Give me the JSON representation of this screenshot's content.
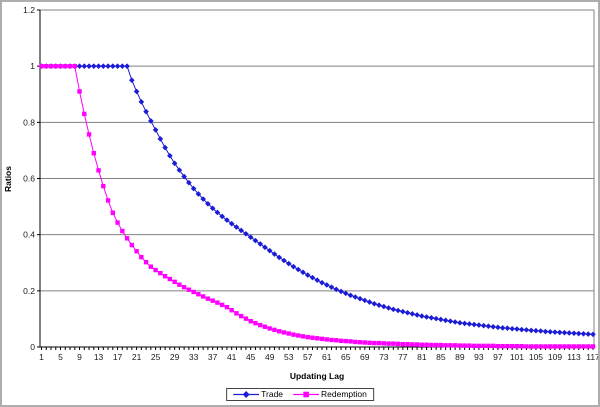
{
  "frame": {
    "background": "#ffffff",
    "border_color": "#adadad",
    "gridline_color": "#808080",
    "axis_color": "#000000"
  },
  "chart_data": {
    "type": "line",
    "title": "",
    "xlabel": "Updating Lag",
    "ylabel": "Ratios",
    "x_range": [
      1,
      117
    ],
    "x_step": 1,
    "ylim": [
      0,
      1.2
    ],
    "y_ticks": [
      0,
      0.2,
      0.4,
      0.6,
      0.8,
      1,
      1.2
    ],
    "y_tick_labels": [
      "0",
      "0.2",
      "0.4",
      "0.6",
      "0.8",
      "1",
      "1.2"
    ],
    "x_tick_label_step": 4,
    "x_tick_labels": [
      "1",
      "5",
      "9",
      "13",
      "17",
      "21",
      "25",
      "29",
      "33",
      "37",
      "41",
      "45",
      "49",
      "53",
      "57",
      "61",
      "65",
      "69",
      "73",
      "77",
      "81",
      "85",
      "89",
      "93",
      "97",
      "101",
      "105",
      "109",
      "113",
      "117"
    ],
    "grid": "horizontal",
    "legend_position": "bottom",
    "series": [
      {
        "name": "Trade",
        "color": "#1c1cd6",
        "marker": "diamond",
        "values": [
          1,
          1,
          1,
          1,
          1,
          1,
          1,
          1,
          1,
          1,
          1,
          1,
          1,
          1,
          1,
          1,
          1,
          1,
          1,
          0.95,
          0.91,
          0.873,
          0.838,
          0.805,
          0.773,
          0.741,
          0.71,
          0.681,
          0.654,
          0.63,
          0.607,
          0.585,
          0.564,
          0.545,
          0.527,
          0.51,
          0.494,
          0.479,
          0.465,
          0.452,
          0.439,
          0.427,
          0.415,
          0.403,
          0.391,
          0.379,
          0.367,
          0.355,
          0.343,
          0.331,
          0.319,
          0.308,
          0.297,
          0.286,
          0.276,
          0.266,
          0.256,
          0.247,
          0.238,
          0.229,
          0.221,
          0.213,
          0.205,
          0.198,
          0.191,
          0.184,
          0.178,
          0.172,
          0.166,
          0.16,
          0.154,
          0.149,
          0.144,
          0.139,
          0.134,
          0.13,
          0.126,
          0.122,
          0.118,
          0.114,
          0.11,
          0.107,
          0.104,
          0.101,
          0.098,
          0.095,
          0.092,
          0.089,
          0.086,
          0.084,
          0.082,
          0.08,
          0.078,
          0.076,
          0.074,
          0.072,
          0.07,
          0.068,
          0.067,
          0.065,
          0.064,
          0.062,
          0.061,
          0.059,
          0.058,
          0.057,
          0.055,
          0.054,
          0.053,
          0.052,
          0.051,
          0.05,
          0.049,
          0.048,
          0.047,
          0.046,
          0.045
        ]
      },
      {
        "name": "Redemption",
        "color": "#ff00ff",
        "marker": "square",
        "values": [
          1,
          1,
          1,
          1,
          1,
          1,
          1,
          1,
          0.91,
          0.83,
          0.757,
          0.69,
          0.629,
          0.573,
          0.522,
          0.478,
          0.443,
          0.413,
          0.387,
          0.363,
          0.341,
          0.32,
          0.302,
          0.286,
          0.274,
          0.263,
          0.252,
          0.242,
          0.232,
          0.222,
          0.213,
          0.204,
          0.196,
          0.188,
          0.18,
          0.172,
          0.165,
          0.158,
          0.15,
          0.142,
          0.131,
          0.12,
          0.11,
          0.101,
          0.092,
          0.085,
          0.078,
          0.072,
          0.066,
          0.061,
          0.056,
          0.052,
          0.048,
          0.044,
          0.041,
          0.038,
          0.035,
          0.033,
          0.031,
          0.029,
          0.027,
          0.025,
          0.024,
          0.022,
          0.021,
          0.02,
          0.018,
          0.017,
          0.016,
          0.015,
          0.014,
          0.014,
          0.013,
          0.012,
          0.012,
          0.011,
          0.01,
          0.01,
          0.009,
          0.009,
          0.008,
          0.008,
          0.007,
          0.007,
          0.007,
          0.006,
          0.006,
          0.006,
          0.005,
          0.005,
          0.005,
          0.004,
          0.004,
          0.004,
          0.004,
          0.004,
          0.003,
          0.003,
          0.003,
          0.003,
          0.003,
          0.003,
          0.002,
          0.002,
          0.002,
          0.002,
          0.002,
          0.002,
          0.002,
          0.002,
          0.002,
          0.002,
          0.002,
          0.002,
          0.002,
          0.002,
          0.002
        ]
      }
    ]
  }
}
